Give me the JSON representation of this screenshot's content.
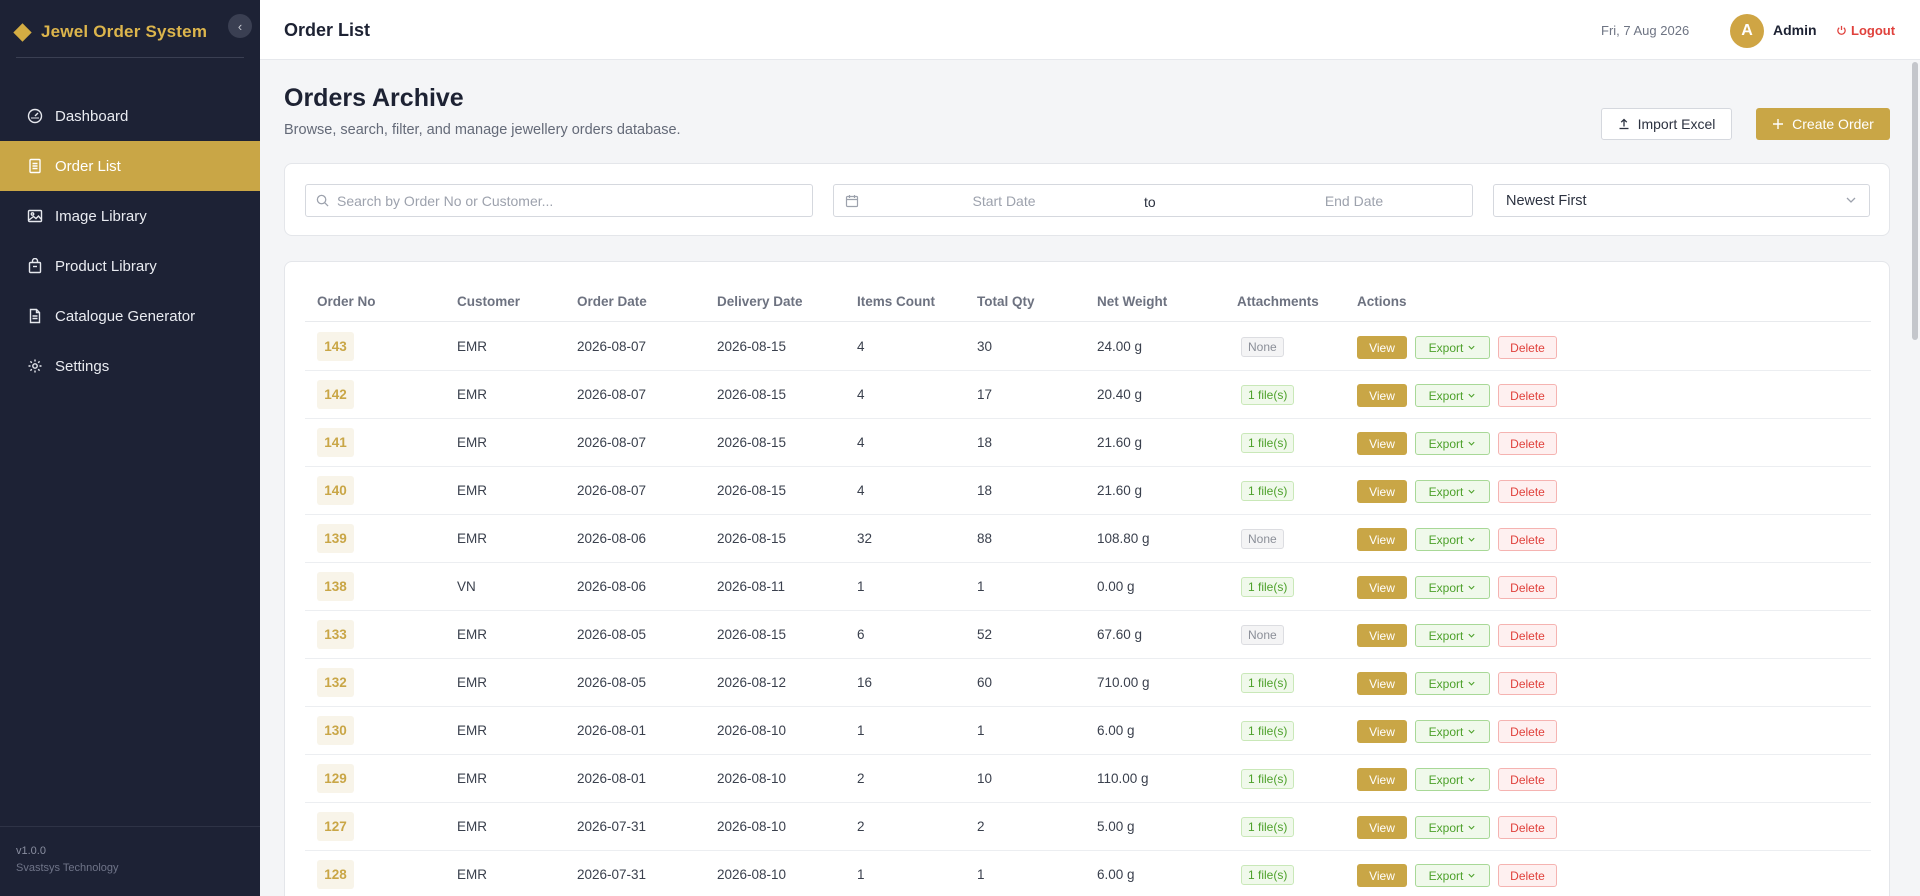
{
  "sidebar": {
    "brand": "Jewel Order System",
    "collapse_icon": "chevron-left-icon",
    "items": [
      {
        "label": "Dashboard",
        "icon": "dashboard-icon",
        "active": false
      },
      {
        "label": "Order List",
        "icon": "order-list-icon",
        "active": true
      },
      {
        "label": "Image Library",
        "icon": "image-icon",
        "active": false
      },
      {
        "label": "Product Library",
        "icon": "product-icon",
        "active": false
      },
      {
        "label": "Catalogue Generator",
        "icon": "document-icon",
        "active": false
      },
      {
        "label": "Settings",
        "icon": "gear-icon",
        "active": false
      }
    ],
    "version": "v1.0.0",
    "company": "Svastsys Technology"
  },
  "header": {
    "title": "Order List",
    "date": "Fri, 7 Aug 2026",
    "avatar_letter": "A",
    "user": "Admin",
    "logout": "Logout"
  },
  "main": {
    "title": "Orders Archive",
    "subtitle": "Browse, search, filter, and manage jewellery orders database.",
    "import_label": "Import Excel",
    "create_label": "Create Order"
  },
  "filters": {
    "search_placeholder": "Search by Order No or Customer...",
    "start_placeholder": "Start Date",
    "to_label": "to",
    "end_placeholder": "End Date",
    "sort_value": "Newest First"
  },
  "table": {
    "columns": [
      "Order No",
      "Customer",
      "Order Date",
      "Delivery Date",
      "Items Count",
      "Total Qty",
      "Net Weight",
      "Attachments",
      "Actions"
    ],
    "actions": {
      "view": "View",
      "export": "Export",
      "delete": "Delete"
    },
    "rows": [
      {
        "order_no": "143",
        "customer": "EMR",
        "order_date": "2026-08-07",
        "delivery_date": "2026-08-15",
        "items": "4",
        "qty": "30",
        "weight": "24.00 g",
        "attachments": "None"
      },
      {
        "order_no": "142",
        "customer": "EMR",
        "order_date": "2026-08-07",
        "delivery_date": "2026-08-15",
        "items": "4",
        "qty": "17",
        "weight": "20.40 g",
        "attachments": "1 file(s)"
      },
      {
        "order_no": "141",
        "customer": "EMR",
        "order_date": "2026-08-07",
        "delivery_date": "2026-08-15",
        "items": "4",
        "qty": "18",
        "weight": "21.60 g",
        "attachments": "1 file(s)"
      },
      {
        "order_no": "140",
        "customer": "EMR",
        "order_date": "2026-08-07",
        "delivery_date": "2026-08-15",
        "items": "4",
        "qty": "18",
        "weight": "21.60 g",
        "attachments": "1 file(s)"
      },
      {
        "order_no": "139",
        "customer": "EMR",
        "order_date": "2026-08-06",
        "delivery_date": "2026-08-15",
        "items": "32",
        "qty": "88",
        "weight": "108.80 g",
        "attachments": "None"
      },
      {
        "order_no": "138",
        "customer": "VN",
        "order_date": "2026-08-06",
        "delivery_date": "2026-08-11",
        "items": "1",
        "qty": "1",
        "weight": "0.00 g",
        "attachments": "1 file(s)"
      },
      {
        "order_no": "133",
        "customer": "EMR",
        "order_date": "2026-08-05",
        "delivery_date": "2026-08-15",
        "items": "6",
        "qty": "52",
        "weight": "67.60 g",
        "attachments": "None"
      },
      {
        "order_no": "132",
        "customer": "EMR",
        "order_date": "2026-08-05",
        "delivery_date": "2026-08-12",
        "items": "16",
        "qty": "60",
        "weight": "710.00 g",
        "attachments": "1 file(s)"
      },
      {
        "order_no": "130",
        "customer": "EMR",
        "order_date": "2026-08-01",
        "delivery_date": "2026-08-10",
        "items": "1",
        "qty": "1",
        "weight": "6.00 g",
        "attachments": "1 file(s)"
      },
      {
        "order_no": "129",
        "customer": "EMR",
        "order_date": "2026-08-01",
        "delivery_date": "2026-08-10",
        "items": "2",
        "qty": "10",
        "weight": "110.00 g",
        "attachments": "1 file(s)"
      },
      {
        "order_no": "127",
        "customer": "EMR",
        "order_date": "2026-07-31",
        "delivery_date": "2026-08-10",
        "items": "2",
        "qty": "2",
        "weight": "5.00 g",
        "attachments": "1 file(s)"
      },
      {
        "order_no": "128",
        "customer": "EMR",
        "order_date": "2026-07-31",
        "delivery_date": "2026-08-10",
        "items": "1",
        "qty": "1",
        "weight": "6.00 g",
        "attachments": "1 file(s)"
      }
    ]
  },
  "colors": {
    "accent": "#c9a646",
    "sidebar_bg": "#1d2235",
    "success": "#4da12b",
    "danger": "#e0413c"
  }
}
